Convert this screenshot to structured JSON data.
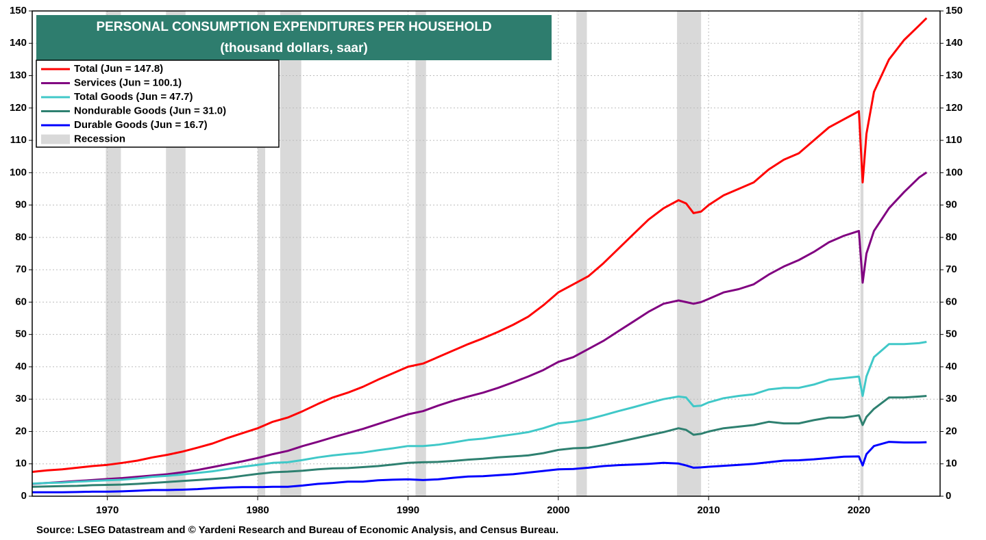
{
  "chart_data": {
    "type": "line",
    "title": "PERSONAL CONSUMPTION EXPENDITURES PER HOUSEHOLD",
    "subtitle": "(thousand dollars, saar)",
    "source": "Source: LSEG Datastream and © Yardeni Research and Bureau of Economic Analysis, and Census Bureau.",
    "recession_label": "Recession",
    "recession_color": "#d9d9d9",
    "recessions": [
      [
        1969.9,
        1970.9
      ],
      [
        1973.9,
        1975.2
      ],
      [
        1980.0,
        1980.5
      ],
      [
        1981.5,
        1982.9
      ],
      [
        1990.5,
        1991.2
      ],
      [
        2001.2,
        2001.9
      ],
      [
        2007.9,
        2009.5
      ],
      [
        2020.1,
        2020.3
      ]
    ],
    "x": [
      1965,
      1966,
      1967,
      1968,
      1969,
      1970,
      1971,
      1972,
      1973,
      1974,
      1975,
      1976,
      1977,
      1978,
      1979,
      1980,
      1981,
      1982,
      1983,
      1984,
      1985,
      1986,
      1987,
      1988,
      1989,
      1990,
      1991,
      1992,
      1993,
      1994,
      1995,
      1996,
      1997,
      1998,
      1999,
      2000,
      2001,
      2002,
      2003,
      2004,
      2005,
      2006,
      2007,
      2008,
      2008.5,
      2009,
      2009.5,
      2010,
      2011,
      2012,
      2013,
      2014,
      2015,
      2016,
      2017,
      2018,
      2019,
      2020,
      2020.25,
      2020.5,
      2021,
      2022,
      2023,
      2024,
      2024.5
    ],
    "series": [
      {
        "name": "Total (Jun = 147.8)",
        "color": "#ff0000",
        "values": [
          7.5,
          8,
          8.3,
          8.8,
          9.3,
          9.7,
          10.3,
          11,
          12,
          12.8,
          13.8,
          15,
          16.3,
          18,
          19.5,
          21,
          23,
          24.3,
          26.3,
          28.5,
          30.5,
          32,
          33.8,
          36,
          38,
          40,
          41,
          43,
          45,
          47,
          48.8,
          50.8,
          53,
          55.5,
          59,
          63,
          65.5,
          68,
          72,
          76.5,
          81,
          85.5,
          89,
          91.5,
          90.5,
          87.5,
          88,
          90,
          93,
          95,
          97,
          101,
          104,
          106,
          110,
          114,
          116.5,
          119,
          97,
          112,
          125,
          135,
          141,
          145.5,
          147.8
        ]
      },
      {
        "name": "Services (Jun = 100.1)",
        "color": "#800080",
        "values": [
          3.8,
          4.1,
          4.4,
          4.7,
          5,
          5.3,
          5.6,
          6,
          6.4,
          6.8,
          7.4,
          8.1,
          9,
          9.9,
          10.8,
          11.8,
          13,
          14,
          15.5,
          16.8,
          18.2,
          19.5,
          20.8,
          22.3,
          23.8,
          25.3,
          26.3,
          28,
          29.5,
          30.8,
          32,
          33.5,
          35.2,
          37,
          39,
          41.5,
          43,
          45.5,
          48,
          51,
          54,
          57,
          59.5,
          60.5,
          60,
          59.5,
          60,
          61,
          63,
          64,
          65.5,
          68.5,
          71,
          73,
          75.5,
          78.5,
          80.5,
          82,
          66,
          75,
          82,
          89,
          94,
          98.5,
          100.1
        ]
      },
      {
        "name": "Total Goods (Jun = 47.7)",
        "color": "#40c8c8",
        "values": [
          3.9,
          4.1,
          4.2,
          4.5,
          4.7,
          4.9,
          5.1,
          5.5,
          6,
          6.3,
          6.7,
          7.2,
          7.7,
          8.4,
          9.1,
          9.7,
          10.3,
          10.5,
          11.2,
          12,
          12.6,
          13.1,
          13.5,
          14.2,
          14.8,
          15.5,
          15.5,
          15.9,
          16.6,
          17.4,
          17.8,
          18.5,
          19.1,
          19.8,
          21,
          22.5,
          23,
          23.8,
          25,
          26.3,
          27.5,
          28.8,
          30,
          30.8,
          30.5,
          27.8,
          28,
          29,
          30.3,
          31,
          31.5,
          33,
          33.5,
          33.5,
          34.5,
          36,
          36.5,
          37,
          31,
          37,
          43,
          47,
          47,
          47.3,
          47.7
        ]
      },
      {
        "name": "Nondurable Goods (Jun = 31.0)",
        "color": "#2e8070",
        "values": [
          2.9,
          3,
          3.1,
          3.2,
          3.4,
          3.5,
          3.6,
          3.8,
          4.1,
          4.4,
          4.7,
          5,
          5.3,
          5.7,
          6.3,
          6.9,
          7.4,
          7.6,
          7.9,
          8.3,
          8.6,
          8.7,
          9,
          9.3,
          9.8,
          10.3,
          10.5,
          10.6,
          10.9,
          11.3,
          11.6,
          12,
          12.3,
          12.6,
          13.3,
          14.3,
          14.8,
          15,
          15.8,
          16.8,
          17.8,
          18.8,
          19.8,
          21,
          20.5,
          19,
          19.3,
          20,
          21,
          21.5,
          22,
          23,
          22.5,
          22.5,
          23.5,
          24.3,
          24.3,
          25,
          22,
          24.5,
          27,
          30.5,
          30.5,
          30.8,
          31
        ]
      },
      {
        "name": "Durable Goods (Jun = 16.7)",
        "color": "#0000ff",
        "values": [
          1.2,
          1.2,
          1.2,
          1.3,
          1.4,
          1.4,
          1.5,
          1.7,
          1.9,
          1.9,
          2,
          2.2,
          2.5,
          2.7,
          2.8,
          2.8,
          2.9,
          2.9,
          3.3,
          3.8,
          4.1,
          4.5,
          4.5,
          4.9,
          5.1,
          5.2,
          5,
          5.2,
          5.7,
          6.1,
          6.2,
          6.5,
          6.8,
          7.3,
          7.8,
          8.3,
          8.4,
          8.8,
          9.3,
          9.6,
          9.8,
          10,
          10.3,
          10.1,
          9.5,
          8.8,
          8.9,
          9.1,
          9.4,
          9.7,
          10,
          10.5,
          11,
          11.1,
          11.4,
          11.8,
          12.2,
          12.3,
          9.5,
          13,
          15.5,
          16.8,
          16.6,
          16.6,
          16.7
        ]
      }
    ],
    "xlim": [
      1965,
      2025.4
    ],
    "xticks": [
      1970,
      1980,
      1990,
      2000,
      2010,
      2020
    ],
    "ylim": [
      0,
      150
    ],
    "yticks": [
      0,
      10,
      20,
      30,
      40,
      50,
      60,
      70,
      80,
      90,
      100,
      110,
      120,
      130,
      140,
      150
    ],
    "y2lim": [
      0,
      150
    ],
    "y2ticks": [
      0,
      10,
      20,
      30,
      40,
      50,
      60,
      70,
      80,
      90,
      100,
      110,
      120,
      130,
      140,
      150
    ],
    "grid": true
  }
}
